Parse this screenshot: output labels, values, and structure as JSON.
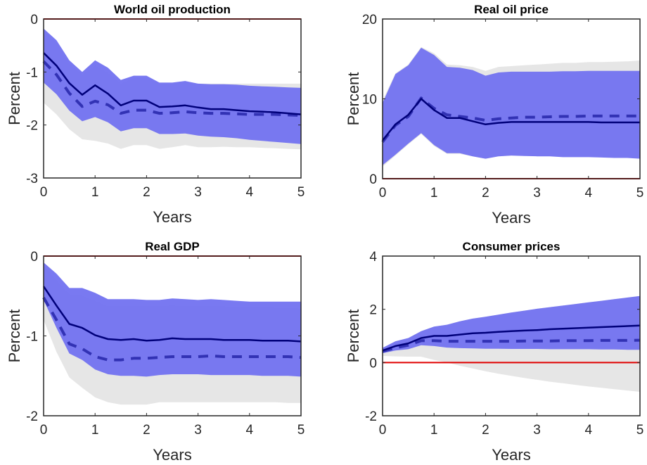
{
  "chart_data": [
    {
      "type": "area",
      "title": "World oil production",
      "xlabel": "Years",
      "ylabel": "Percent",
      "xlim": [
        0,
        5
      ],
      "ylim": [
        -3,
        0
      ],
      "xticks": [
        0,
        1,
        2,
        3,
        4,
        5
      ],
      "yticks": [
        -3,
        -2,
        -1,
        0
      ],
      "reference_line": 0,
      "x": [
        0,
        0.25,
        0.5,
        0.75,
        1,
        1.25,
        1.5,
        1.75,
        2,
        2.25,
        2.5,
        2.75,
        3,
        3.25,
        3.5,
        3.75,
        4,
        4.25,
        4.5,
        4.75,
        5
      ],
      "series": [
        {
          "name": "band-gray-upper",
          "values": [
            -0.22,
            -0.45,
            -0.85,
            -1.05,
            -0.88,
            -1.02,
            -1.22,
            -1.12,
            -1.12,
            -1.22,
            -1.22,
            -1.2,
            -1.22,
            -1.22,
            -1.22,
            -1.22,
            -1.22,
            -1.22,
            -1.22,
            -1.22,
            -1.22
          ]
        },
        {
          "name": "band-gray-lower",
          "values": [
            -1.58,
            -1.8,
            -2.08,
            -2.27,
            -2.3,
            -2.35,
            -2.45,
            -2.38,
            -2.38,
            -2.45,
            -2.42,
            -2.38,
            -2.42,
            -2.42,
            -2.41,
            -2.42,
            -2.42,
            -2.43,
            -2.44,
            -2.45,
            -2.46
          ]
        },
        {
          "name": "band-blue-upper",
          "values": [
            -0.18,
            -0.4,
            -0.78,
            -1.0,
            -0.78,
            -0.92,
            -1.15,
            -1.07,
            -1.07,
            -1.2,
            -1.2,
            -1.17,
            -1.22,
            -1.23,
            -1.23,
            -1.24,
            -1.26,
            -1.27,
            -1.28,
            -1.29,
            -1.3
          ]
        },
        {
          "name": "band-blue-lower",
          "values": [
            -1.2,
            -1.42,
            -1.73,
            -1.93,
            -1.85,
            -1.95,
            -2.12,
            -2.06,
            -2.06,
            -2.17,
            -2.17,
            -2.16,
            -2.2,
            -2.22,
            -2.23,
            -2.25,
            -2.28,
            -2.3,
            -2.32,
            -2.34,
            -2.36
          ]
        },
        {
          "name": "median-solid",
          "values": [
            -0.64,
            -0.88,
            -1.21,
            -1.43,
            -1.25,
            -1.41,
            -1.63,
            -1.54,
            -1.54,
            -1.66,
            -1.65,
            -1.63,
            -1.67,
            -1.7,
            -1.7,
            -1.72,
            -1.74,
            -1.75,
            -1.76,
            -1.78,
            -1.8
          ]
        },
        {
          "name": "median-dashed",
          "values": [
            -0.8,
            -1.05,
            -1.4,
            -1.65,
            -1.55,
            -1.62,
            -1.78,
            -1.72,
            -1.72,
            -1.78,
            -1.77,
            -1.75,
            -1.77,
            -1.78,
            -1.78,
            -1.79,
            -1.8,
            -1.8,
            -1.8,
            -1.81,
            -1.82
          ]
        }
      ]
    },
    {
      "type": "area",
      "title": "Real oil price",
      "xlabel": "Years",
      "ylabel": "Percent",
      "xlim": [
        0,
        5
      ],
      "ylim": [
        0,
        20
      ],
      "xticks": [
        0,
        1,
        2,
        3,
        4,
        5
      ],
      "yticks": [
        0,
        10,
        20
      ],
      "reference_line": 0,
      "x": [
        0,
        0.25,
        0.5,
        0.75,
        1,
        1.25,
        1.5,
        1.75,
        2,
        2.25,
        2.5,
        2.75,
        3,
        3.25,
        3.5,
        3.75,
        4,
        4.25,
        4.5,
        4.75,
        5
      ],
      "series": [
        {
          "name": "band-gray-upper",
          "values": [
            9.8,
            13.2,
            14.3,
            16.5,
            15.7,
            14.3,
            14.2,
            14.0,
            13.5,
            14.0,
            14.1,
            14.2,
            14.3,
            14.4,
            14.5,
            14.5,
            14.6,
            14.6,
            14.65,
            14.7,
            14.8
          ]
        },
        {
          "name": "band-gray-lower",
          "values": [
            1.5,
            2.9,
            4.3,
            5.6,
            4.1,
            3.1,
            3.1,
            2.8,
            2.5,
            2.8,
            2.9,
            2.9,
            2.85,
            2.85,
            2.8,
            2.75,
            2.75,
            2.7,
            2.7,
            2.7,
            2.7
          ]
        },
        {
          "name": "band-blue-upper",
          "values": [
            9.5,
            13.1,
            14.2,
            16.4,
            15.5,
            14.0,
            13.9,
            13.6,
            12.9,
            13.3,
            13.4,
            13.4,
            13.4,
            13.4,
            13.45,
            13.45,
            13.5,
            13.5,
            13.5,
            13.5,
            13.5
          ]
        },
        {
          "name": "band-blue-lower",
          "values": [
            1.7,
            3.0,
            4.4,
            5.7,
            4.2,
            3.2,
            3.2,
            2.8,
            2.5,
            2.8,
            2.9,
            2.85,
            2.8,
            2.8,
            2.7,
            2.7,
            2.7,
            2.65,
            2.6,
            2.6,
            2.5
          ]
        },
        {
          "name": "median-solid",
          "values": [
            4.8,
            6.8,
            8.0,
            10.0,
            8.6,
            7.6,
            7.6,
            7.2,
            6.8,
            7.0,
            7.1,
            7.1,
            7.1,
            7.1,
            7.1,
            7.1,
            7.1,
            7.05,
            7.05,
            7.05,
            7.05
          ]
        },
        {
          "name": "median-dashed",
          "values": [
            4.6,
            6.7,
            7.8,
            10.1,
            8.8,
            8.0,
            7.8,
            7.6,
            7.3,
            7.5,
            7.6,
            7.7,
            7.7,
            7.75,
            7.8,
            7.8,
            7.85,
            7.85,
            7.85,
            7.85,
            7.85
          ]
        }
      ]
    },
    {
      "type": "area",
      "title": "Real GDP",
      "xlabel": "Years",
      "ylabel": "Percent",
      "xlim": [
        0,
        5
      ],
      "ylim": [
        -2,
        0
      ],
      "xticks": [
        0,
        1,
        2,
        3,
        4,
        5
      ],
      "yticks": [
        -2,
        -1,
        0
      ],
      "reference_line": 0,
      "x": [
        0,
        0.25,
        0.5,
        0.75,
        1,
        1.25,
        1.5,
        1.75,
        2,
        2.25,
        2.5,
        2.75,
        3,
        3.25,
        3.5,
        3.75,
        4,
        4.25,
        4.5,
        4.75,
        5
      ],
      "series": [
        {
          "name": "band-gray-upper",
          "values": [
            -0.12,
            -0.3,
            -0.48,
            -0.5,
            -0.56,
            -0.63,
            -0.63,
            -0.63,
            -0.63,
            -0.63,
            -0.62,
            -0.63,
            -0.63,
            -0.63,
            -0.63,
            -0.64,
            -0.64,
            -0.64,
            -0.65,
            -0.65,
            -0.66
          ]
        },
        {
          "name": "band-gray-lower",
          "values": [
            -0.8,
            -1.2,
            -1.52,
            -1.65,
            -1.77,
            -1.83,
            -1.86,
            -1.86,
            -1.86,
            -1.83,
            -1.83,
            -1.83,
            -1.83,
            -1.83,
            -1.83,
            -1.83,
            -1.83,
            -1.83,
            -1.83,
            -1.84,
            -1.84
          ]
        },
        {
          "name": "band-blue-upper",
          "values": [
            -0.08,
            -0.22,
            -0.4,
            -0.4,
            -0.46,
            -0.54,
            -0.54,
            -0.54,
            -0.55,
            -0.55,
            -0.53,
            -0.54,
            -0.55,
            -0.54,
            -0.55,
            -0.56,
            -0.57,
            -0.57,
            -0.57,
            -0.57,
            -0.57
          ]
        },
        {
          "name": "band-blue-lower",
          "values": [
            -0.55,
            -0.9,
            -1.22,
            -1.3,
            -1.42,
            -1.48,
            -1.5,
            -1.5,
            -1.51,
            -1.49,
            -1.48,
            -1.48,
            -1.48,
            -1.49,
            -1.49,
            -1.49,
            -1.49,
            -1.5,
            -1.5,
            -1.5,
            -1.51
          ]
        },
        {
          "name": "median-solid",
          "values": [
            -0.38,
            -0.62,
            -0.85,
            -0.9,
            -0.99,
            -1.04,
            -1.05,
            -1.04,
            -1.06,
            -1.05,
            -1.03,
            -1.04,
            -1.04,
            -1.04,
            -1.05,
            -1.05,
            -1.05,
            -1.06,
            -1.06,
            -1.06,
            -1.07
          ]
        },
        {
          "name": "median-dashed",
          "values": [
            -0.52,
            -0.8,
            -1.1,
            -1.16,
            -1.26,
            -1.3,
            -1.3,
            -1.28,
            -1.28,
            -1.27,
            -1.26,
            -1.26,
            -1.26,
            -1.25,
            -1.26,
            -1.26,
            -1.26,
            -1.26,
            -1.26,
            -1.26,
            -1.27
          ]
        }
      ]
    },
    {
      "type": "area",
      "title": "Consumer prices",
      "xlabel": "Years",
      "ylabel": "Percent",
      "xlim": [
        0,
        5
      ],
      "ylim": [
        -2,
        4
      ],
      "xticks": [
        0,
        1,
        2,
        3,
        4,
        5
      ],
      "yticks": [
        -2,
        0,
        2,
        4
      ],
      "reference_line": 0,
      "x": [
        0,
        0.25,
        0.5,
        0.75,
        1,
        1.25,
        1.5,
        1.75,
        2,
        2.25,
        2.5,
        2.75,
        3,
        3.25,
        3.5,
        3.75,
        4,
        4.25,
        4.5,
        4.75,
        5
      ],
      "series": [
        {
          "name": "band-gray-upper",
          "values": [
            0.55,
            0.8,
            0.92,
            1.18,
            1.35,
            1.42,
            1.55,
            1.65,
            1.72,
            1.8,
            1.88,
            1.95,
            2.02,
            2.08,
            2.14,
            2.2,
            2.26,
            2.32,
            2.38,
            2.44,
            2.5
          ]
        },
        {
          "name": "band-gray-lower",
          "values": [
            0.25,
            0.23,
            0.22,
            0.22,
            0.1,
            0.0,
            -0.12,
            -0.22,
            -0.33,
            -0.42,
            -0.5,
            -0.58,
            -0.65,
            -0.72,
            -0.78,
            -0.84,
            -0.9,
            -0.95,
            -1.0,
            -1.05,
            -1.1
          ]
        },
        {
          "name": "band-blue-upper",
          "values": [
            0.55,
            0.8,
            0.92,
            1.18,
            1.35,
            1.42,
            1.55,
            1.65,
            1.72,
            1.8,
            1.88,
            1.95,
            2.02,
            2.08,
            2.14,
            2.2,
            2.26,
            2.32,
            2.38,
            2.44,
            2.5
          ]
        },
        {
          "name": "band-blue-lower",
          "values": [
            0.35,
            0.45,
            0.5,
            0.65,
            0.62,
            0.56,
            0.54,
            0.53,
            0.52,
            0.52,
            0.51,
            0.51,
            0.51,
            0.5,
            0.5,
            0.5,
            0.5,
            0.49,
            0.49,
            0.48,
            0.48
          ]
        },
        {
          "name": "median-solid",
          "values": [
            0.45,
            0.62,
            0.72,
            0.92,
            1.0,
            1.0,
            1.05,
            1.1,
            1.12,
            1.15,
            1.18,
            1.2,
            1.22,
            1.25,
            1.27,
            1.29,
            1.31,
            1.33,
            1.35,
            1.37,
            1.39
          ]
        },
        {
          "name": "median-dashed",
          "values": [
            0.42,
            0.55,
            0.65,
            0.82,
            0.82,
            0.8,
            0.8,
            0.8,
            0.8,
            0.8,
            0.8,
            0.81,
            0.81,
            0.81,
            0.82,
            0.82,
            0.82,
            0.83,
            0.83,
            0.83,
            0.84
          ]
        }
      ]
    }
  ],
  "colors": {
    "band_gray": "#e6e6e6",
    "band_blue": "#7272f0",
    "median_solid": "#00007a",
    "median_dashed": "#3232b4",
    "reference_line": "#e00000",
    "axis": "#262626"
  }
}
